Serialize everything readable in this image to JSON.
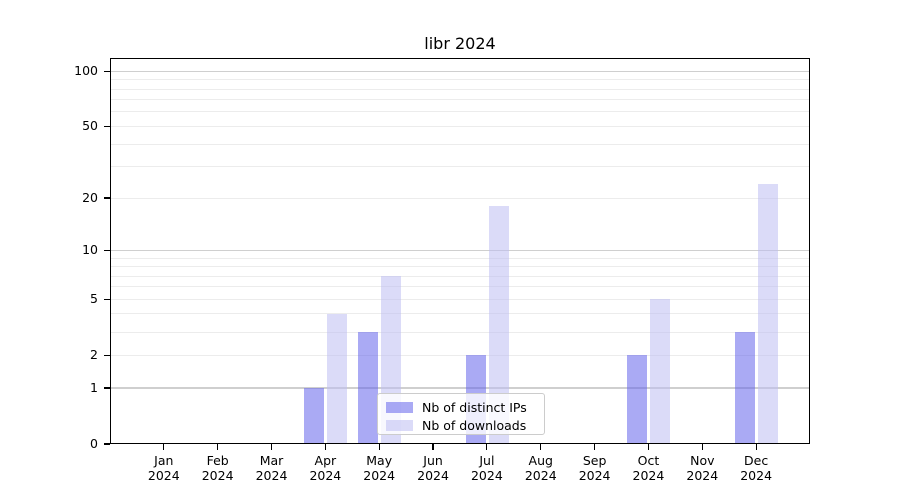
{
  "title": "libr 2024",
  "colors": {
    "bar_distinct_ips": "#6464EB8C",
    "bar_downloads": "#BEBEF28C",
    "major_grid": "#cfcfcf",
    "minor_grid": "#ececec",
    "axis": "#000000",
    "text": "#000000",
    "legend_border": "#cccccc",
    "background": "#ffffff"
  },
  "legend": {
    "items": [
      {
        "label": "Nb of distinct IPs"
      },
      {
        "label": "Nb of downloads"
      }
    ]
  },
  "chart_data": {
    "type": "bar",
    "title": "libr 2024",
    "xlabel": "",
    "ylabel": "",
    "y_scale": "log1p",
    "ylim": [
      0,
      118
    ],
    "grid": "on",
    "legend_position": "lower center",
    "categories": [
      "Jan 2024",
      "Feb 2024",
      "Mar 2024",
      "Apr 2024",
      "May 2024",
      "Jun 2024",
      "Jul 2024",
      "Aug 2024",
      "Sep 2024",
      "Oct 2024",
      "Nov 2024",
      "Dec 2024"
    ],
    "series": [
      {
        "name": "Nb of distinct IPs",
        "values": [
          0,
          0,
          0,
          1,
          3,
          0,
          2,
          0,
          0,
          2,
          0,
          3
        ],
        "color": "#6464EB8C"
      },
      {
        "name": "Nb of downloads",
        "values": [
          0,
          0,
          0,
          4,
          7,
          0,
          18,
          0,
          0,
          5,
          0,
          24
        ],
        "color": "#BEBEF28C"
      }
    ],
    "y_axis": {
      "tick_values": [
        0,
        1,
        2,
        5,
        10,
        20,
        50,
        100
      ],
      "major_grid_values": [
        1,
        10,
        100
      ],
      "minor_grid_values": [
        2,
        3,
        4,
        5,
        6,
        7,
        8,
        9,
        20,
        30,
        40,
        50,
        60,
        70,
        80,
        90
      ]
    }
  }
}
